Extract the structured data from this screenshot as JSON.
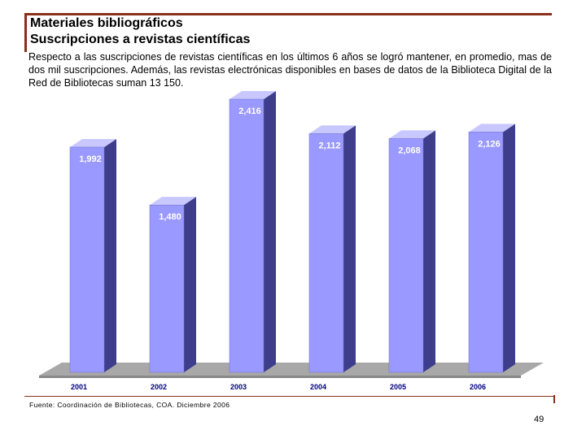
{
  "slide": {
    "title_line1": "Materiales bibliográficos",
    "title_line2": "Suscripciones a revistas científicas",
    "intro": "Respecto a las suscripciones de revistas científicas en los últimos 6 años se logró mantener, en promedio,  mas de dos mil suscripciones. Además, las revistas electrónicas disponibles en bases de datos de la Biblioteca Digital de la Red de Bibliotecas suman 13 150.",
    "source": "Fuente: Coordinación de Bibliotecas, COA. Diciembre 2006",
    "page_number": "49"
  },
  "colors": {
    "bar_front": "#9999FF",
    "bar_side": "#3D3D8C",
    "bar_top": "#C8C8FF",
    "floor": "#A8A8A8",
    "label": "#FFFFFF",
    "axis_label": "#000080"
  },
  "chart_data": {
    "type": "bar",
    "title": "",
    "xlabel": "",
    "ylabel": "",
    "categories": [
      "2001",
      "2002",
      "2003",
      "2004",
      "2005",
      "2006"
    ],
    "values": [
      1992,
      1480,
      2416,
      2112,
      2068,
      2126
    ],
    "labels": [
      "1,992",
      "1,480",
      "2,416",
      "2,112",
      "2,068",
      "2,126"
    ],
    "ylim": [
      0,
      2600
    ],
    "grid": false,
    "legend": "none"
  }
}
